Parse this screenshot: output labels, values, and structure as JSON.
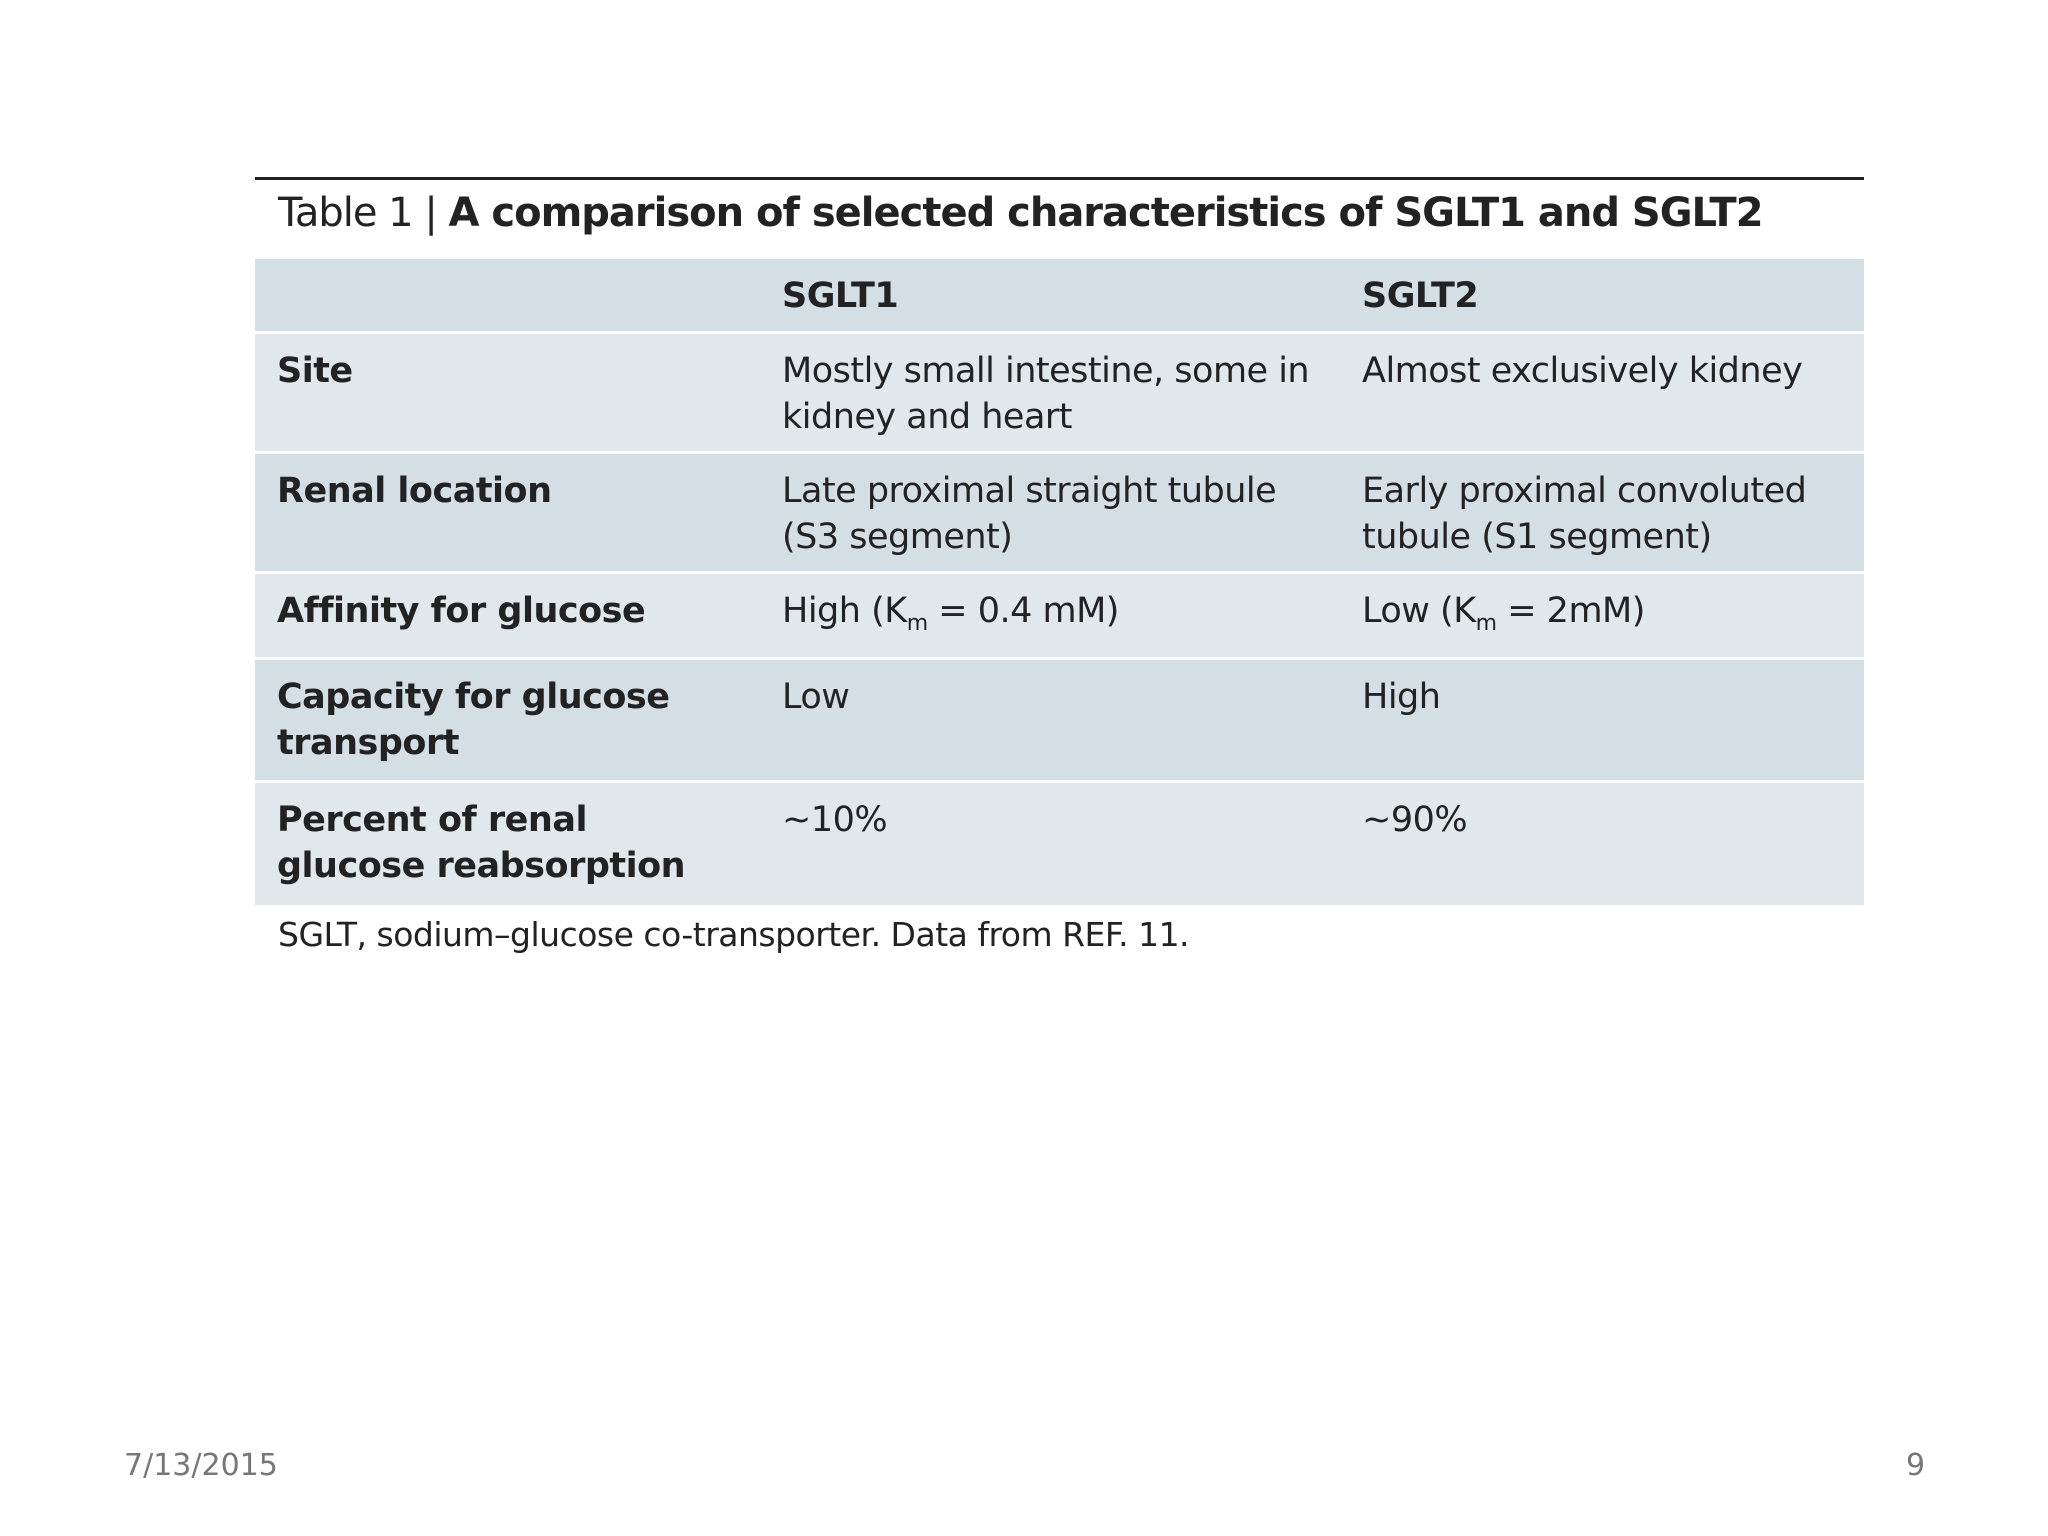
{
  "table": {
    "caption_label": "Table 1 |",
    "caption_title": "A comparison of selected characteristics of SGLT1 and SGLT2",
    "columns": [
      "SGLT1",
      "SGLT2"
    ],
    "rows": [
      [
        "Site",
        "Mostly small intestine, some in kidney and heart",
        "Almost exclusively kidney"
      ],
      [
        "Renal location",
        "Late proximal straight tubule (S3 segment)",
        "Early proximal convoluted tubule (S1 segment)"
      ],
      [
        "Affinity for glucose",
        {
          "before": "High (K",
          "sub": "m",
          "after": " = 0.4 mM)"
        },
        {
          "before": "Low (K",
          "sub": "m",
          "after": " = 2mM)"
        }
      ],
      [
        "Capacity for glucose transport",
        "Low",
        "High"
      ],
      [
        "Percent of renal glucose reabsorption",
        "~10%",
        "~90%"
      ]
    ],
    "footnote": "SGLT, sodium–glucose co-transporter. Data from REF. 11."
  },
  "footer": {
    "date": "7/13/2015",
    "page": "9"
  }
}
